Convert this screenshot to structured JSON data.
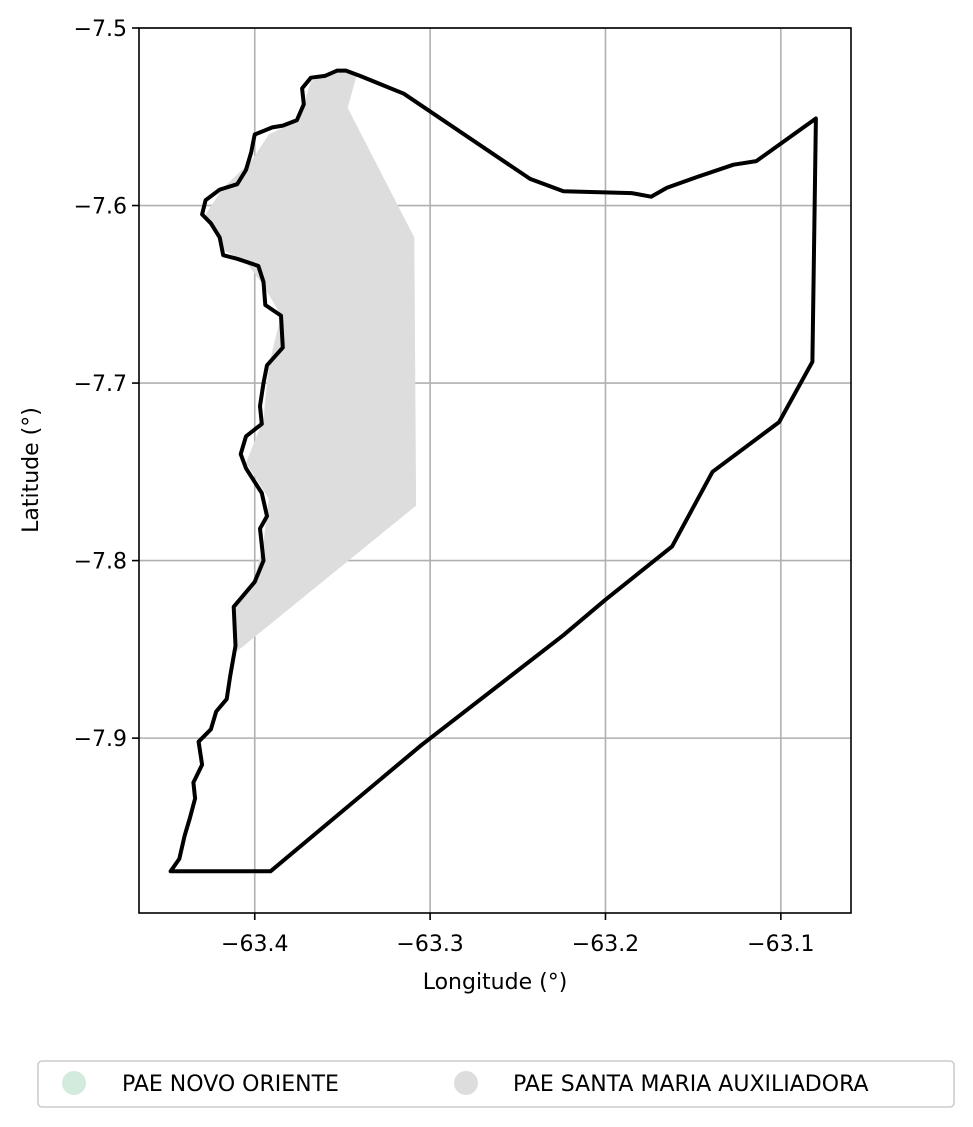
{
  "chart_data": {
    "type": "map",
    "title": "",
    "xlabel": "Longitude (°)",
    "ylabel": "Latitude (°)",
    "xlim": [
      -63.466,
      -63.06
    ],
    "ylim": [
      -7.9985,
      -7.5
    ],
    "grid": true,
    "x_ticks": [
      {
        "value": -63.4,
        "label": "−63.4"
      },
      {
        "value": -63.3,
        "label": "−63.3"
      },
      {
        "value": -63.2,
        "label": "−63.2"
      },
      {
        "value": -63.1,
        "label": "−63.1"
      }
    ],
    "y_ticks": [
      {
        "value": -7.5,
        "label": "−7.5"
      },
      {
        "value": -7.6,
        "label": "−7.6"
      },
      {
        "value": -7.7,
        "label": "−7.7"
      },
      {
        "value": -7.8,
        "label": "−7.8"
      },
      {
        "value": -7.9,
        "label": "−7.9"
      }
    ],
    "legend": {
      "placement": "bottom",
      "entries": [
        {
          "name": "PAE NOVO ORIENTE",
          "color": "#d2ebdd"
        },
        {
          "name": "PAE SANTA MARIA AUXILIADORA",
          "color": "#dddddd"
        }
      ]
    },
    "layers": [
      {
        "name": "PAE SANTA MARIA AUXILIADORA",
        "fill": "#dddddd",
        "coords": [
          [
            -63.342,
            -7.527
          ],
          [
            -63.347,
            -7.545
          ],
          [
            -63.309,
            -7.618
          ],
          [
            -63.308,
            -7.769
          ],
          [
            -63.41,
            -7.851
          ],
          [
            -63.412,
            -7.826
          ],
          [
            -63.4,
            -7.81
          ],
          [
            -63.395,
            -7.79
          ],
          [
            -63.392,
            -7.765
          ],
          [
            -63.405,
            -7.745
          ],
          [
            -63.395,
            -7.72
          ],
          [
            -63.392,
            -7.69
          ],
          [
            -63.385,
            -7.662
          ],
          [
            -63.395,
            -7.645
          ],
          [
            -63.405,
            -7.632
          ],
          [
            -63.418,
            -7.625
          ],
          [
            -63.428,
            -7.605
          ],
          [
            -63.418,
            -7.59
          ],
          [
            -63.402,
            -7.575
          ],
          [
            -63.392,
            -7.56
          ],
          [
            -63.375,
            -7.552
          ],
          [
            -63.368,
            -7.53
          ],
          [
            -63.352,
            -7.523
          ]
        ]
      },
      {
        "name": "PAE NOVO ORIENTE",
        "outline": "#000000",
        "coords": [
          [
            -63.348,
            -7.524
          ],
          [
            -63.34,
            -7.527
          ],
          [
            -63.315,
            -7.537
          ],
          [
            -63.243,
            -7.585
          ],
          [
            -63.224,
            -7.592
          ],
          [
            -63.185,
            -7.593
          ],
          [
            -63.174,
            -7.595
          ],
          [
            -63.165,
            -7.59
          ],
          [
            -63.148,
            -7.584
          ],
          [
            -63.127,
            -7.577
          ],
          [
            -63.114,
            -7.575
          ],
          [
            -63.08,
            -7.551
          ],
          [
            -63.082,
            -7.688
          ],
          [
            -63.101,
            -7.722
          ],
          [
            -63.139,
            -7.75
          ],
          [
            -63.162,
            -7.792
          ],
          [
            -63.2,
            -7.822
          ],
          [
            -63.224,
            -7.842
          ],
          [
            -63.305,
            -7.904
          ],
          [
            -63.391,
            -7.975
          ],
          [
            -63.448,
            -7.975
          ],
          [
            -63.443,
            -7.968
          ],
          [
            -63.44,
            -7.955
          ],
          [
            -63.437,
            -7.945
          ],
          [
            -63.434,
            -7.934
          ],
          [
            -63.435,
            -7.925
          ],
          [
            -63.43,
            -7.915
          ],
          [
            -63.432,
            -7.902
          ],
          [
            -63.425,
            -7.895
          ],
          [
            -63.422,
            -7.885
          ],
          [
            -63.416,
            -7.878
          ],
          [
            -63.414,
            -7.865
          ],
          [
            -63.411,
            -7.848
          ],
          [
            -63.412,
            -7.826
          ],
          [
            -63.4,
            -7.812
          ],
          [
            -63.395,
            -7.8
          ],
          [
            -63.397,
            -7.782
          ],
          [
            -63.393,
            -7.775
          ],
          [
            -63.396,
            -7.762
          ],
          [
            -63.405,
            -7.748
          ],
          [
            -63.408,
            -7.74
          ],
          [
            -63.405,
            -7.73
          ],
          [
            -63.396,
            -7.723
          ],
          [
            -63.397,
            -7.713
          ],
          [
            -63.395,
            -7.7
          ],
          [
            -63.393,
            -7.69
          ],
          [
            -63.384,
            -7.68
          ],
          [
            -63.385,
            -7.662
          ],
          [
            -63.394,
            -7.656
          ],
          [
            -63.395,
            -7.643
          ],
          [
            -63.398,
            -7.634
          ],
          [
            -63.41,
            -7.63
          ],
          [
            -63.418,
            -7.628
          ],
          [
            -63.42,
            -7.618
          ],
          [
            -63.425,
            -7.61
          ],
          [
            -63.43,
            -7.605
          ],
          [
            -63.428,
            -7.597
          ],
          [
            -63.42,
            -7.591
          ],
          [
            -63.41,
            -7.588
          ],
          [
            -63.405,
            -7.58
          ],
          [
            -63.402,
            -7.57
          ],
          [
            -63.4,
            -7.56
          ],
          [
            -63.39,
            -7.556
          ],
          [
            -63.384,
            -7.555
          ],
          [
            -63.376,
            -7.552
          ],
          [
            -63.372,
            -7.543
          ],
          [
            -63.373,
            -7.534
          ],
          [
            -63.368,
            -7.528
          ],
          [
            -63.36,
            -7.527
          ],
          [
            -63.353,
            -7.524
          ],
          [
            -63.348,
            -7.524
          ]
        ]
      }
    ]
  }
}
